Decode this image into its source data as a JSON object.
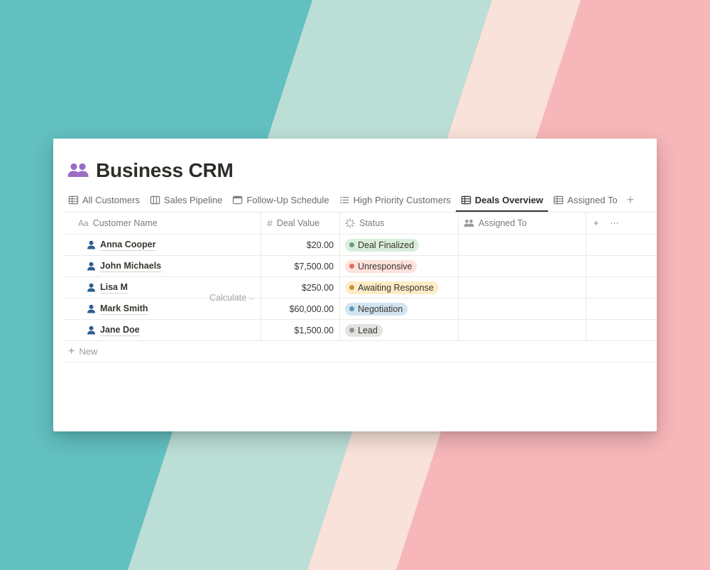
{
  "background": {
    "colors": [
      "#62c0c0",
      "#bbded7",
      "#f8e2d9",
      "#f7b6b9"
    ]
  },
  "page": {
    "title": "Business CRM",
    "title_icon": "people-icon",
    "accent": "#9a6dc4"
  },
  "tabs": [
    {
      "label": "All Customers",
      "icon": "table-icon",
      "active": false
    },
    {
      "label": "Sales Pipeline",
      "icon": "board-icon",
      "active": false
    },
    {
      "label": "Follow-Up Schedule",
      "icon": "calendar-icon",
      "active": false
    },
    {
      "label": "High Priority Customers",
      "icon": "list-icon",
      "active": false
    },
    {
      "label": "Deals Overview",
      "icon": "table-icon",
      "active": true
    },
    {
      "label": "Assigned To",
      "icon": "table-icon",
      "active": false
    }
  ],
  "table": {
    "columns": [
      {
        "label": "Customer Name",
        "icon_text": "Aa"
      },
      {
        "label": "Deal Value",
        "icon_text": "#"
      },
      {
        "label": "Status",
        "icon": "status-icon"
      },
      {
        "label": "Assigned To",
        "icon": "people-icon"
      }
    ],
    "rows": [
      {
        "name": "Anna Cooper",
        "value": "$20.00",
        "status": "Deal Finalized",
        "status_bg": "#dbeddb",
        "status_dot": "#6c9b7d",
        "assigned": ""
      },
      {
        "name": "John Michaels",
        "value": "$7,500.00",
        "status": "Unresponsive",
        "status_bg": "#ffe2dd",
        "status_dot": "#e16f64",
        "assigned": ""
      },
      {
        "name": "Lisa M",
        "value": "$250.00",
        "status": "Awaiting Response",
        "status_bg": "#fdecc8",
        "status_dot": "#cb912f",
        "assigned": ""
      },
      {
        "name": "Mark Smith",
        "value": "$60,000.00",
        "status": "Negotiation",
        "status_bg": "#d3e5ef",
        "status_dot": "#5b97bd",
        "assigned": ""
      },
      {
        "name": "Jane Doe",
        "value": "$1,500.00",
        "status": "Lead",
        "status_bg": "#e3e2e0",
        "status_dot": "#91918e",
        "assigned": ""
      }
    ],
    "new_label": "New",
    "calculate_label": "Calculate"
  }
}
